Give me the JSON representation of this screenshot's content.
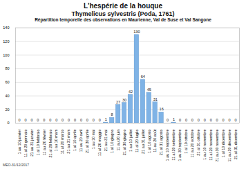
{
  "chart_data": {
    "type": "bar",
    "title": "L'hespérie de la houque",
    "subtitle": "Thymelicus sylvestris (Poda, 1761)",
    "description": "Répartition temporelle des observations en Maurienne, Val de Suse et Val Sangone",
    "caption": "MEO-31/12/2017",
    "categories": [
      "1 au 10 janvier",
      "11 al 20 gennaio",
      "21 au 31 janvier",
      "1 al 10 febbraio",
      "11 au 20 février",
      "21 al 28 febbraio",
      "1 au 10 mars",
      "11 al 20 marzo",
      "21 au 31 mars",
      "1 al 10 aprile",
      "11 au 20 avril",
      "21 al 30 aprile",
      "1 au 10 mai",
      "11 al 20 maggio",
      "21 au 31 mai",
      "1 al 10 giugno",
      "11 au 20 juin",
      "21 al 30 giugno",
      "1 au 10 juillet",
      "11 al 20 luglio",
      "21 au 31 juillet",
      "1 al 10 agosto",
      "11 au 20 août",
      "21 al 31 agosto",
      "1 au 10 septembre",
      "11 al 20 settembre",
      "21 au 30 septembre",
      "1 al 10 ottobre",
      "11 au 20 octobre",
      "21 al 31 ottobre",
      "1 au 10 novembre",
      "11 al 20 novembre",
      "21 au 30 novembre",
      "1 al 10 dicembre",
      "11 au 20 décembre",
      "21 al 31 dicembre"
    ],
    "values": [
      0,
      0,
      0,
      0,
      0,
      0,
      0,
      0,
      0,
      0,
      0,
      0,
      0,
      0,
      1,
      8,
      27,
      30,
      42,
      130,
      64,
      45,
      31,
      16,
      0,
      1,
      0,
      0,
      0,
      0,
      0,
      0,
      0,
      0,
      0,
      0
    ],
    "color": "#7fb3e6",
    "ylim": [
      0,
      140
    ],
    "yticks": [
      0,
      20,
      40,
      60,
      80,
      100,
      120,
      140
    ],
    "grid": true,
    "data_labels": true
  }
}
